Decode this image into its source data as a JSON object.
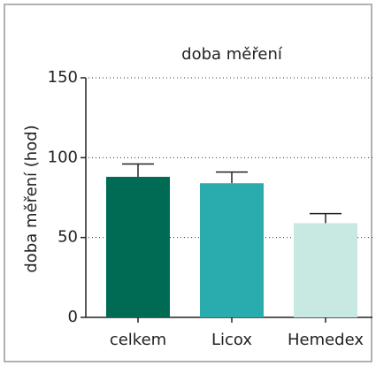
{
  "chart_data": {
    "type": "bar",
    "title": "doba měření",
    "y_label": "doba měření (hod)",
    "categories": [
      "celkem",
      "Licox",
      "Hemedex"
    ],
    "values": [
      88,
      84,
      59
    ],
    "errors": [
      8,
      7,
      6
    ],
    "colors": [
      "#006b54",
      "#2aacaf",
      "#c8e9e1"
    ],
    "ylim": [
      0,
      150
    ],
    "yticks": [
      0,
      50,
      100,
      150
    ],
    "grid": true
  }
}
